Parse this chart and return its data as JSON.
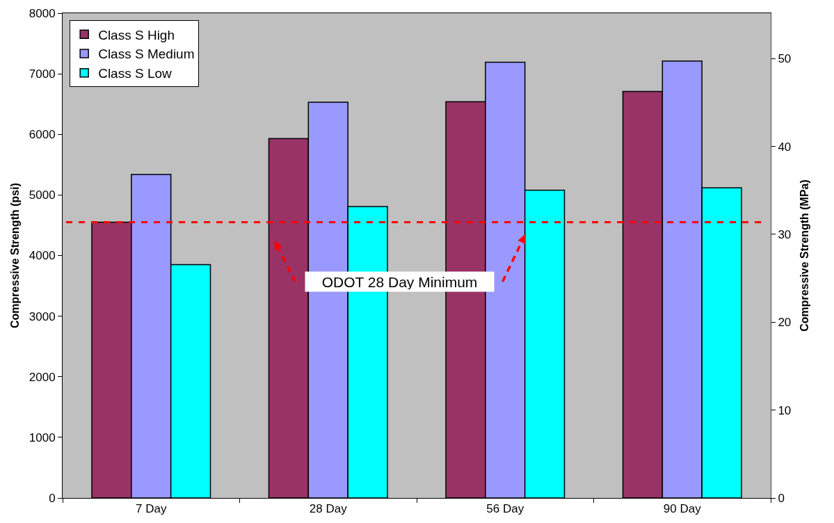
{
  "chart_data": {
    "type": "bar",
    "categories": [
      "7 Day",
      "28 Day",
      "56 Day",
      "90 Day"
    ],
    "series": [
      {
        "name": "Class S High",
        "color": "#993366",
        "values": [
          4550,
          5930,
          6540,
          6710
        ]
      },
      {
        "name": "Class S Medium",
        "color": "#9999ff",
        "values": [
          5340,
          6530,
          7190,
          7210
        ]
      },
      {
        "name": "Class S Low",
        "color": "#00ffff",
        "values": [
          3850,
          4810,
          5080,
          5120
        ]
      }
    ],
    "ylabel": "Compressive Strength (psi)",
    "y2label": "Compressive Strength (MPa)",
    "ylim": [
      0,
      8000
    ],
    "yticks": [
      0,
      1000,
      2000,
      3000,
      4000,
      5000,
      6000,
      7000,
      8000
    ],
    "y2lim": [
      0,
      55.16
    ],
    "y2ticks": [
      0,
      10,
      20,
      30,
      40,
      50
    ],
    "ref_lines": [
      {
        "axis": "y",
        "value": 4550,
        "color": "#ff0000",
        "line_style": "dashed"
      }
    ],
    "annotations": [
      "ODOT 28 Day Minimum"
    ],
    "legend": "top left"
  }
}
